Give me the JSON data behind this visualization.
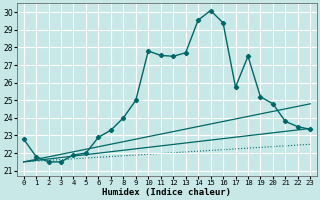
{
  "xlabel": "Humidex (Indice chaleur)",
  "bg_color": "#c8e8e8",
  "grid_color": "#ffffff",
  "line_color": "#006666",
  "xlim": [
    -0.5,
    23.5
  ],
  "ylim": [
    20.7,
    30.5
  ],
  "yticks": [
    21,
    22,
    23,
    24,
    25,
    26,
    27,
    28,
    29,
    30
  ],
  "xticks": [
    0,
    1,
    2,
    3,
    4,
    5,
    6,
    7,
    8,
    9,
    10,
    11,
    12,
    13,
    14,
    15,
    16,
    17,
    18,
    19,
    20,
    21,
    22,
    23
  ],
  "main_x": [
    0,
    1,
    2,
    3,
    4,
    5,
    6,
    7,
    8,
    9,
    10,
    11,
    12,
    13,
    14,
    15,
    16,
    17,
    18,
    19,
    20,
    21,
    22,
    23
  ],
  "main_y": [
    22.8,
    21.8,
    21.5,
    21.5,
    21.9,
    22.0,
    22.9,
    23.3,
    24.0,
    25.0,
    27.8,
    27.55,
    27.5,
    27.7,
    29.55,
    30.1,
    29.4,
    25.75,
    27.5,
    25.2,
    24.8,
    23.8,
    23.5,
    23.35
  ],
  "line1_x": [
    0,
    23
  ],
  "line1_y": [
    21.5,
    24.8
  ],
  "line2_x": [
    0,
    23
  ],
  "line2_y": [
    21.5,
    23.4
  ],
  "line3_x": [
    0,
    23
  ],
  "line3_y": [
    21.5,
    22.5
  ]
}
